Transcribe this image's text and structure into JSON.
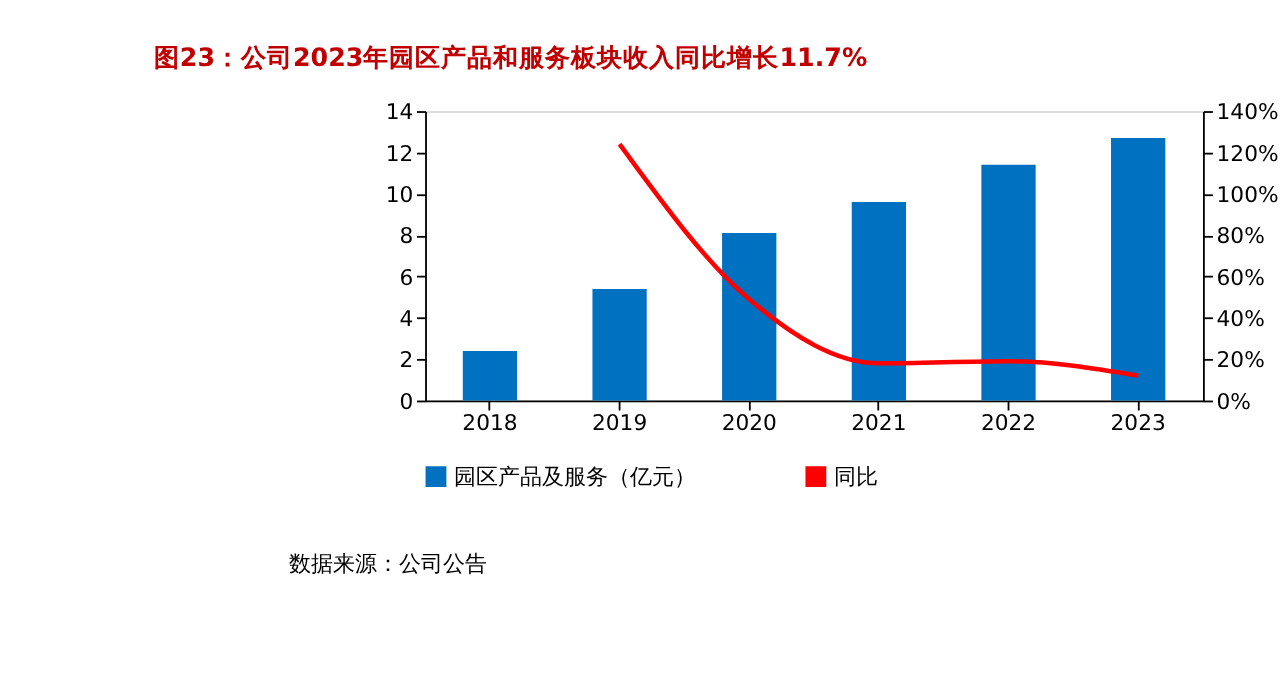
{
  "chart_data": {
    "type": "bar",
    "title": "图23：公司2023年园区产品和服务板块收入同比增长11.7%",
    "categories": [
      "2018",
      "2019",
      "2020",
      "2021",
      "2022",
      "2023"
    ],
    "series": [
      {
        "name": "园区产品及服务（亿元）",
        "color": "#0070c0",
        "values": [
          2.4,
          5.4,
          8.1,
          9.6,
          11.4,
          12.7
        ]
      },
      {
        "name": "同比",
        "type": "line",
        "axis": "y2",
        "color": "#ff0000",
        "values": [
          null,
          124,
          49,
          18,
          19,
          12
        ]
      }
    ],
    "ylim": [
      0,
      14
    ],
    "yticks": [
      0,
      2,
      4,
      6,
      8,
      10,
      12,
      14
    ],
    "y2lim": [
      0,
      140
    ],
    "y2ticks": [
      {
        "value": 0,
        "label": "0%"
      },
      {
        "value": 20,
        "label": "20%"
      },
      {
        "value": 40,
        "label": "40%"
      },
      {
        "value": 60,
        "label": "60%"
      },
      {
        "value": 80,
        "label": "80%"
      },
      {
        "value": 100,
        "label": "100%"
      },
      {
        "value": 120,
        "label": "120%"
      },
      {
        "value": 140,
        "label": "140%"
      }
    ],
    "grid": false,
    "legend": "bottom",
    "marker": "none",
    "line_style": "solid",
    "annotations": [
      "数据来源：公司公告"
    ]
  }
}
